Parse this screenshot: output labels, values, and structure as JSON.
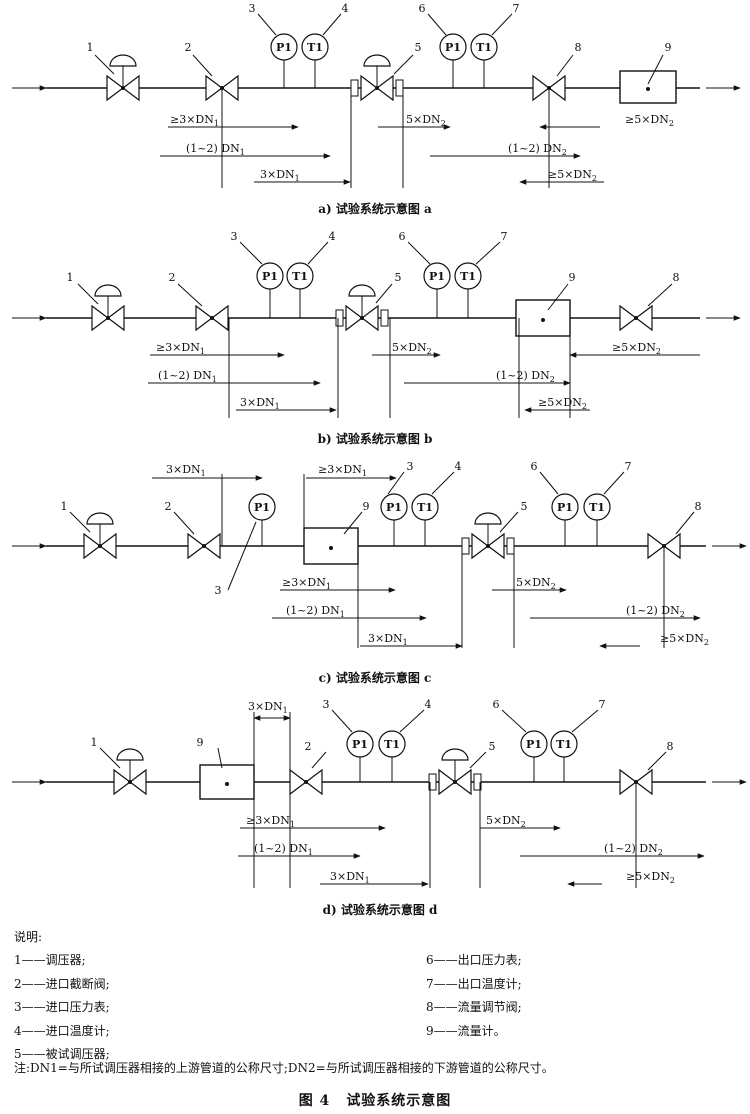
{
  "diagrams": [
    {
      "caption": "a)  试验系统示意图 a",
      "layout": "a",
      "labels": {
        "n1": "1",
        "n2": "2",
        "n3": "3",
        "n4": "4",
        "n5": "5",
        "n6": "6",
        "n7": "7",
        "n8": "8",
        "n9": "9"
      },
      "gauges": {
        "p_in": "P1",
        "t_in": "T1",
        "p_out": "P1",
        "t_out": "T1"
      },
      "dims": {
        "d1": "≥3×DN1",
        "d2": "(1~2) DN1",
        "d3": "3×DN1",
        "d4": "5×DN2",
        "d5": "(1~2) DN2",
        "d6": "≥5×DN2",
        "d7": "≥5×DN2"
      }
    },
    {
      "caption": "b)  试验系统示意图 b",
      "layout": "b",
      "labels": {
        "n1": "1",
        "n2": "2",
        "n3": "3",
        "n4": "4",
        "n5": "5",
        "n6": "6",
        "n7": "7",
        "n8": "8",
        "n9": "9"
      },
      "gauges": {
        "p_in": "P1",
        "t_in": "T1",
        "p_out": "P1",
        "t_out": "T1"
      },
      "dims": {
        "d1": "≥3×DN1",
        "d2": "(1~2) DN1",
        "d3": "3×DN1",
        "d4": "5×DN2",
        "d5": "(1~2) DN2",
        "d6": "≥5×DN2",
        "d7": "≥5×DN2"
      }
    },
    {
      "caption": "c)  试验系统示意图 c",
      "layout": "c",
      "labels": {
        "n1": "1",
        "n2": "2",
        "n3": "3",
        "n3b": "3",
        "n4": "4",
        "n5": "5",
        "n6": "6",
        "n7": "7",
        "n8": "8",
        "n9": "9"
      },
      "gauges": {
        "p_mid": "P1",
        "p_in": "P1",
        "t_in": "T1",
        "p_out": "P1",
        "t_out": "T1"
      },
      "dims": {
        "top1": "3×DN1",
        "top2": "≥3×DN1",
        "d1": "≥3×DN1",
        "d2": "(1~2) DN1",
        "d3": "3×DN1",
        "d4": "5×DN2",
        "d5": "(1~2) DN2",
        "d6": "≥5×DN2"
      }
    },
    {
      "caption": "d)  试验系统示意图 d",
      "layout": "d",
      "labels": {
        "n1": "1",
        "n2": "2",
        "n3": "3",
        "n4": "4",
        "n5": "5",
        "n6": "6",
        "n7": "7",
        "n8": "8",
        "n9": "9"
      },
      "gauges": {
        "p_in": "P1",
        "t_in": "T1",
        "p_out": "P1",
        "t_out": "T1"
      },
      "dims": {
        "top1": "3×DN1",
        "d1": "≥3×DN1",
        "d2": "(1~2) DN1",
        "d3": "3×DN1",
        "d4": "5×DN2",
        "d5": "(1~2) DN2",
        "d6": "≥5×DN2"
      }
    }
  ],
  "legend": {
    "heading": "说明:",
    "left": [
      "1——调压器;",
      "2——进口截断阀;",
      "3——进口压力表;",
      "4——进口温度计;",
      "5——被试调压器;"
    ],
    "right": [
      "6——出口压力表;",
      "7——出口温度计;",
      "8——流量调节阀;",
      "9——流量计。"
    ]
  },
  "note": "注:DN1=与所试调压器相接的上游管道的公称尺寸;DN2=与所试调压器相接的下游管道的公称尺寸。",
  "figure_title": {
    "number": "图 4",
    "text": "试验系统示意图"
  }
}
